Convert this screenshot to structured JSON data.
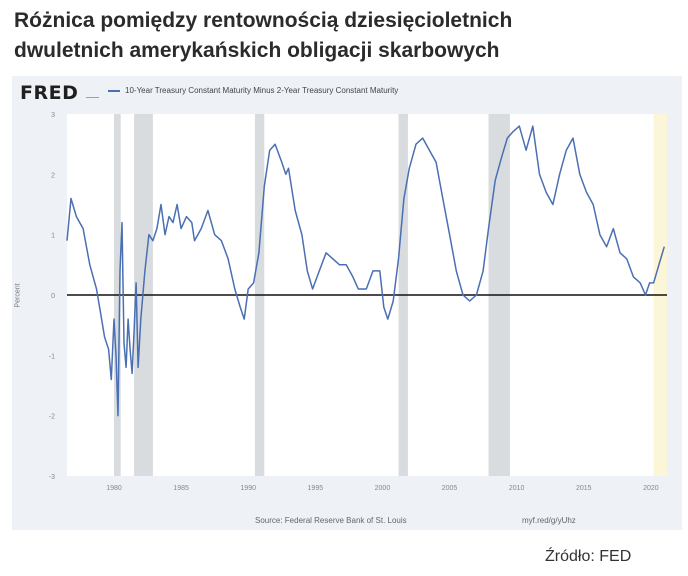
{
  "title": {
    "line1": "Różnica pomiędzy rentownością dziesięcioletnich",
    "line2": "dwuletnich amerykańskich obligacji skarbowych"
  },
  "logo": "FRED",
  "legend_label": "10-Year Treasury Constant Maturity Minus 2-Year Treasury Constant Maturity",
  "footer": {
    "source": "Source: Federal Reserve Bank of St. Louis",
    "url": "myf.red/g/yUhz"
  },
  "source_note": "Źródło: FED",
  "colors": {
    "series": "#4a6fb3",
    "recession": "#d9dcdf",
    "zero_line": "#111111",
    "highlight": "#fbf6d8"
  },
  "chart_data": {
    "type": "line",
    "title": "",
    "xlabel": "",
    "ylabel": "Percent",
    "xlim": [
      1976.5,
      2021.2
    ],
    "ylim": [
      -3,
      3
    ],
    "x_ticks": [
      1980,
      1985,
      1990,
      1995,
      2000,
      2005,
      2010,
      2015,
      2020
    ],
    "y_ticks": [
      3,
      2,
      1,
      0,
      -1,
      -2,
      -3
    ],
    "grid": false,
    "legend": "top-left",
    "recessions": [
      [
        1980.0,
        1980.5
      ],
      [
        1981.5,
        1982.9
      ],
      [
        1990.5,
        1991.2
      ],
      [
        2001.2,
        2001.9
      ],
      [
        2007.9,
        2009.5
      ]
    ],
    "shaded_recent": [
      2020.2,
      2021.2
    ],
    "series": [
      {
        "name": "10-Year Treasury Constant Maturity Minus 2-Year Treasury Constant Maturity",
        "x": [
          1976.5,
          1976.8,
          1977.2,
          1977.7,
          1978.2,
          1978.7,
          1979.0,
          1979.3,
          1979.6,
          1979.8,
          1980.0,
          1980.15,
          1980.3,
          1980.45,
          1980.6,
          1980.75,
          1980.9,
          1981.05,
          1981.2,
          1981.35,
          1981.5,
          1981.65,
          1981.8,
          1982.0,
          1982.3,
          1982.6,
          1982.9,
          1983.2,
          1983.5,
          1983.8,
          1984.1,
          1984.4,
          1984.7,
          1985.0,
          1985.4,
          1985.8,
          1986.0,
          1986.5,
          1987.0,
          1987.5,
          1988.0,
          1988.5,
          1989.0,
          1989.4,
          1989.7,
          1990.0,
          1990.4,
          1990.8,
          1991.2,
          1991.6,
          1992.0,
          1992.5,
          1992.8,
          1993.0,
          1993.5,
          1994.0,
          1994.4,
          1994.8,
          1995.3,
          1995.8,
          1996.3,
          1996.8,
          1997.3,
          1997.8,
          1998.2,
          1998.8,
          1999.3,
          1999.8,
          2000.1,
          2000.4,
          2000.8,
          2001.2,
          2001.6,
          2002.0,
          2002.5,
          2003.0,
          2003.5,
          2004.0,
          2004.5,
          2005.0,
          2005.5,
          2006.0,
          2006.5,
          2007.0,
          2007.5,
          2007.9,
          2008.4,
          2008.9,
          2009.3,
          2009.7,
          2010.2,
          2010.7,
          2011.2,
          2011.7,
          2012.2,
          2012.7,
          2013.2,
          2013.7,
          2014.2,
          2014.7,
          2015.2,
          2015.7,
          2016.2,
          2016.7,
          2017.2,
          2017.7,
          2018.2,
          2018.7,
          2019.2,
          2019.6,
          2019.9,
          2020.2,
          2020.6,
          2021.0
        ],
        "y": [
          0.9,
          1.6,
          1.3,
          1.1,
          0.5,
          0.1,
          -0.3,
          -0.7,
          -0.9,
          -1.4,
          -0.4,
          -1.0,
          -2.0,
          0.4,
          1.2,
          -0.8,
          -1.2,
          -0.4,
          -0.9,
          -1.3,
          -0.6,
          0.2,
          -1.2,
          -0.4,
          0.4,
          1.0,
          0.9,
          1.1,
          1.5,
          1.0,
          1.3,
          1.2,
          1.5,
          1.1,
          1.3,
          1.2,
          0.9,
          1.1,
          1.4,
          1.0,
          0.9,
          0.6,
          0.1,
          -0.2,
          -0.4,
          0.1,
          0.2,
          0.7,
          1.8,
          2.4,
          2.5,
          2.2,
          2.0,
          2.1,
          1.4,
          1.0,
          0.4,
          0.1,
          0.4,
          0.7,
          0.6,
          0.5,
          0.5,
          0.3,
          0.1,
          0.1,
          0.4,
          0.4,
          -0.2,
          -0.4,
          -0.1,
          0.6,
          1.6,
          2.1,
          2.5,
          2.6,
          2.4,
          2.2,
          1.6,
          1.0,
          0.4,
          0.0,
          -0.1,
          0.0,
          0.4,
          1.1,
          1.9,
          2.3,
          2.6,
          2.7,
          2.8,
          2.4,
          2.8,
          2.0,
          1.7,
          1.5,
          2.0,
          2.4,
          2.6,
          2.0,
          1.7,
          1.5,
          1.0,
          0.8,
          1.1,
          0.7,
          0.6,
          0.3,
          0.2,
          0.0,
          0.2,
          0.2,
          0.5,
          0.8
        ]
      }
    ]
  }
}
